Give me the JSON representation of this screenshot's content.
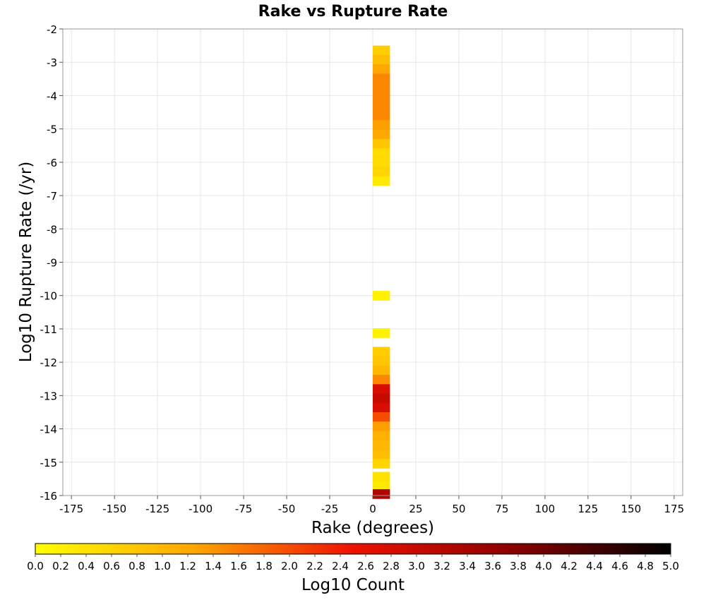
{
  "chart_data": {
    "type": "heatmap",
    "title": "Rake vs Rupture Rate",
    "xlabel": "Rake (degrees)",
    "ylabel": "Log10 Rupture Rate (/yr)",
    "xlim": [
      -180,
      180
    ],
    "ylim": [
      -16,
      -2
    ],
    "xticks": [
      -175,
      -150,
      -125,
      -100,
      -75,
      -50,
      -25,
      0,
      25,
      50,
      75,
      100,
      125,
      150,
      175
    ],
    "yticks": [
      -2,
      -3,
      -4,
      -5,
      -6,
      -7,
      -8,
      -9,
      -10,
      -11,
      -12,
      -13,
      -14,
      -15,
      -16
    ],
    "grid": true,
    "bin_width_x": 10,
    "bin_height_y": 0.28,
    "colorbar": {
      "label": "Log10 Count",
      "min": 0.0,
      "max": 5.0,
      "ticks": [
        "0.0",
        "0.2",
        "0.4",
        "0.6",
        "0.8",
        "1.0",
        "1.2",
        "1.4",
        "1.6",
        "1.8",
        "2.0",
        "2.2",
        "2.4",
        "2.6",
        "2.8",
        "3.0",
        "3.2",
        "3.4",
        "3.6",
        "3.8",
        "4.0",
        "4.2",
        "4.4",
        "4.6",
        "4.8",
        "5.0"
      ],
      "stops": [
        "#ffff00",
        "#ffa500",
        "#ee1100",
        "#8b0000",
        "#000000"
      ]
    },
    "cells": [
      {
        "x": 5,
        "y": -2.64,
        "value": 0.7
      },
      {
        "x": 5,
        "y": -2.92,
        "value": 0.9
      },
      {
        "x": 5,
        "y": -3.2,
        "value": 1.2
      },
      {
        "x": 5,
        "y": -3.48,
        "value": 1.5
      },
      {
        "x": 5,
        "y": -3.76,
        "value": 1.5
      },
      {
        "x": 5,
        "y": -4.04,
        "value": 1.5
      },
      {
        "x": 5,
        "y": -4.32,
        "value": 1.5
      },
      {
        "x": 5,
        "y": -4.6,
        "value": 1.5
      },
      {
        "x": 5,
        "y": -4.88,
        "value": 1.3
      },
      {
        "x": 5,
        "y": -5.16,
        "value": 1.2
      },
      {
        "x": 5,
        "y": -5.44,
        "value": 0.8
      },
      {
        "x": 5,
        "y": -5.72,
        "value": 0.5
      },
      {
        "x": 5,
        "y": -6.0,
        "value": 0.5
      },
      {
        "x": 5,
        "y": -6.28,
        "value": 0.6
      },
      {
        "x": 5,
        "y": -6.56,
        "value": 0.3
      },
      {
        "x": 5,
        "y": -10.0,
        "value": 0.2
      },
      {
        "x": 5,
        "y": -11.12,
        "value": 0.2
      },
      {
        "x": 5,
        "y": -11.68,
        "value": 0.7
      },
      {
        "x": 5,
        "y": -11.96,
        "value": 0.8
      },
      {
        "x": 5,
        "y": -12.24,
        "value": 1.0
      },
      {
        "x": 5,
        "y": -12.52,
        "value": 1.5
      },
      {
        "x": 5,
        "y": -12.8,
        "value": 2.8
      },
      {
        "x": 5,
        "y": -13.08,
        "value": 3.0
      },
      {
        "x": 5,
        "y": -13.36,
        "value": 2.8
      },
      {
        "x": 5,
        "y": -13.64,
        "value": 2.0
      },
      {
        "x": 5,
        "y": -13.92,
        "value": 1.3
      },
      {
        "x": 5,
        "y": -14.2,
        "value": 1.1
      },
      {
        "x": 5,
        "y": -14.48,
        "value": 1.0
      },
      {
        "x": 5,
        "y": -14.76,
        "value": 0.9
      },
      {
        "x": 5,
        "y": -15.04,
        "value": 0.6
      },
      {
        "x": 5,
        "y": -15.43,
        "value": 0.4
      },
      {
        "x": 5,
        "y": -15.71,
        "value": 0.3
      },
      {
        "x": 5,
        "y": -15.95,
        "value": 3.3
      }
    ]
  }
}
